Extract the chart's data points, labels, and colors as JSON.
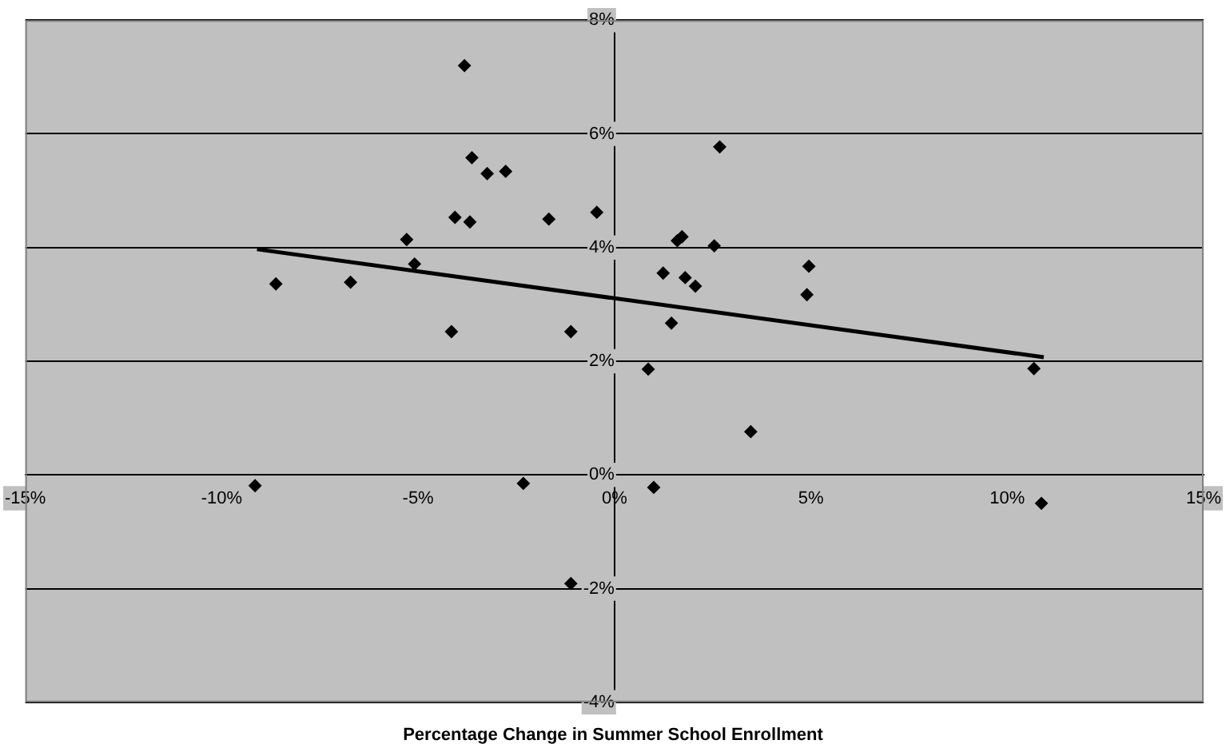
{
  "chart_data": {
    "type": "scatter",
    "xlabel": "Percentage Change in Summer School Enrollment",
    "xlim": [
      -15,
      15
    ],
    "xticks": [
      {
        "value": -15,
        "label": "-15%"
      },
      {
        "value": -10,
        "label": "-10%"
      },
      {
        "value": -5,
        "label": "-5%"
      },
      {
        "value": 0,
        "label": "0%"
      },
      {
        "value": 5,
        "label": "5%"
      },
      {
        "value": 10,
        "label": "10%"
      },
      {
        "value": 15,
        "label": "15%"
      }
    ],
    "ylim": [
      -4,
      8
    ],
    "yticks": [
      {
        "value": -4,
        "label": "-4%"
      },
      {
        "value": -2,
        "label": "-2%"
      },
      {
        "value": 0,
        "label": "0%"
      },
      {
        "value": 2,
        "label": "2%"
      },
      {
        "value": 4,
        "label": "4%"
      },
      {
        "value": 6,
        "label": "6%"
      },
      {
        "value": 8,
        "label": "8%"
      }
    ],
    "grid": "y",
    "legend": false,
    "marker": "diamond",
    "series": [
      {
        "color": "#000000",
        "x": [
          -9.15,
          -8.62,
          -6.72,
          -5.29,
          -5.09,
          -4.15,
          -4.06,
          -3.82,
          -3.68,
          -3.63,
          -3.24,
          -2.77,
          -2.32,
          -1.67,
          -1.11,
          -1.11,
          -0.45,
          0.86,
          1.0,
          1.24,
          1.45,
          1.6,
          1.72,
          1.8,
          2.06,
          2.54,
          2.68,
          3.47,
          4.9,
          4.95,
          10.68,
          10.87
        ],
        "values": [
          -0.19,
          3.36,
          3.39,
          4.14,
          3.71,
          2.52,
          4.53,
          7.2,
          4.45,
          5.58,
          5.3,
          5.34,
          -0.15,
          4.5,
          2.52,
          -1.91,
          4.62,
          1.86,
          -0.22,
          3.55,
          2.67,
          4.12,
          4.19,
          3.47,
          3.32,
          4.03,
          5.77,
          0.76,
          3.17,
          3.67,
          1.87,
          -0.5
        ]
      },
      {
        "type": "line",
        "color": "#000000",
        "marker": "none",
        "x": [
          -9.1,
          10.93
        ],
        "values": [
          3.97,
          2.07
        ]
      }
    ]
  }
}
